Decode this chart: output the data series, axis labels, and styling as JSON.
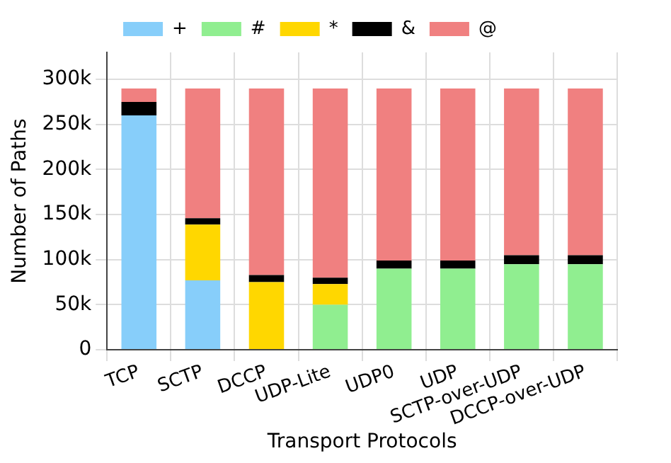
{
  "chart_data": {
    "type": "bar",
    "stacked": true,
    "xlabel": "Transport Protocols",
    "ylabel": "Number of Paths",
    "categories": [
      "TCP",
      "SCTP",
      "DCCP",
      "UDP-Lite",
      "UDP0",
      "UDP",
      "SCTP-over-UDP",
      "DCCP-over-UDP"
    ],
    "series": [
      {
        "name": "+",
        "color": "#87cefa",
        "values": [
          260000,
          77000,
          0,
          0,
          0,
          0,
          0,
          0
        ]
      },
      {
        "name": "#",
        "color": "#90ee90",
        "values": [
          0,
          0,
          0,
          50000,
          90000,
          90000,
          95000,
          95000
        ]
      },
      {
        "name": "*",
        "color": "#ffd700",
        "values": [
          0,
          62000,
          75000,
          23000,
          0,
          0,
          0,
          0
        ]
      },
      {
        "name": "&",
        "color": "#000000",
        "values": [
          15000,
          7000,
          8000,
          7000,
          9000,
          9000,
          10000,
          10000
        ]
      },
      {
        "name": "@",
        "color": "#f08080",
        "values": [
          15000,
          144000,
          207000,
          210000,
          191000,
          191000,
          185000,
          185000
        ]
      }
    ],
    "ylim": [
      0,
      330000
    ],
    "yticks": [
      {
        "value": 0,
        "label": "0"
      },
      {
        "value": 50000,
        "label": "50k"
      },
      {
        "value": 100000,
        "label": "100k"
      },
      {
        "value": 150000,
        "label": "150k"
      },
      {
        "value": 200000,
        "label": "200k"
      },
      {
        "value": 250000,
        "label": "250k"
      },
      {
        "value": 300000,
        "label": "300k"
      }
    ],
    "grid": true,
    "legend": "top"
  }
}
